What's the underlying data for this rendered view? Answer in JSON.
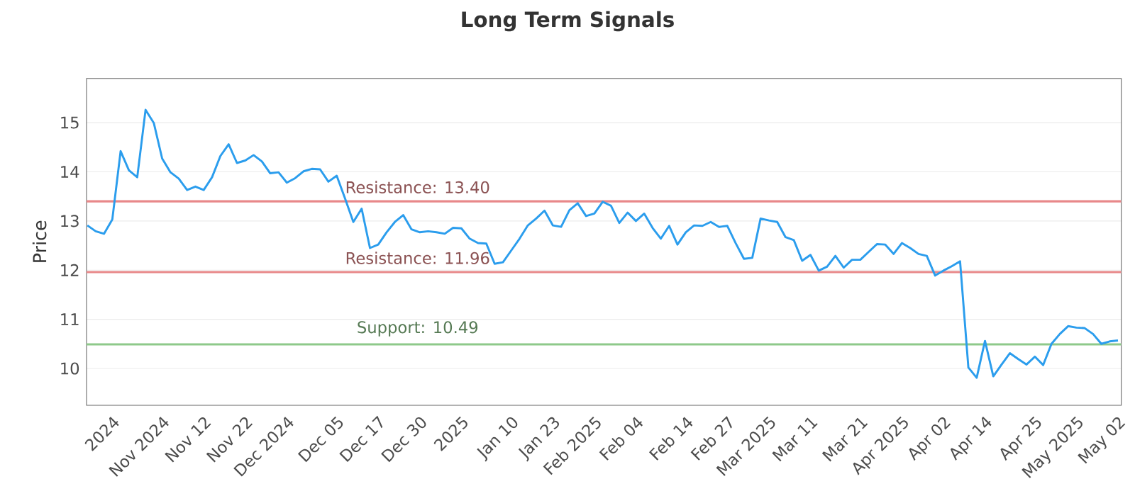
{
  "chart_data": {
    "type": "line",
    "title": "Long Term Signals",
    "ylabel": "Price",
    "categories": [
      null,
      null,
      null,
      "2024",
      null,
      null,
      null,
      null,
      null,
      "Nov 2024",
      null,
      null,
      null,
      null,
      "Nov 12",
      null,
      null,
      null,
      null,
      "Nov 22",
      null,
      null,
      null,
      null,
      "Dec 2024",
      null,
      null,
      null,
      null,
      null,
      "Dec 05",
      null,
      null,
      null,
      null,
      "Dec 17",
      null,
      null,
      null,
      null,
      "Dec 30",
      null,
      null,
      null,
      null,
      "2025",
      null,
      null,
      null,
      null,
      null,
      "Jan 10",
      null,
      null,
      null,
      null,
      "Jan 23",
      null,
      null,
      null,
      null,
      "Feb 2025",
      null,
      null,
      null,
      null,
      "Feb 04",
      null,
      null,
      null,
      null,
      null,
      "Feb 14",
      null,
      null,
      null,
      null,
      "Feb 27",
      null,
      null,
      null,
      null,
      "Mar 2025",
      null,
      null,
      null,
      null,
      "Mar 11",
      null,
      null,
      null,
      null,
      null,
      "Mar 21",
      null,
      null,
      null,
      null,
      "Apr 2025",
      null,
      null,
      null,
      null,
      "Apr 02",
      null,
      null,
      null,
      null,
      "Apr 14",
      null,
      null,
      null,
      null,
      null,
      "Apr 25",
      null,
      null,
      null,
      null,
      "May 2025",
      null,
      null,
      null,
      null,
      "May 02"
    ],
    "series": [
      {
        "color": "#2b9ded",
        "values": [
          12.91,
          12.79,
          12.74,
          13.03,
          14.42,
          14.03,
          13.89,
          15.26,
          14.99,
          14.27,
          13.99,
          13.86,
          13.63,
          13.7,
          13.63,
          13.89,
          14.32,
          14.56,
          14.18,
          14.23,
          14.34,
          14.21,
          13.97,
          13.99,
          13.78,
          13.87,
          14.01,
          14.06,
          14.05,
          13.8,
          13.92,
          13.46,
          12.98,
          13.25,
          12.45,
          12.52,
          12.77,
          12.98,
          13.12,
          12.83,
          12.77,
          12.79,
          12.77,
          12.74,
          12.86,
          12.85,
          12.64,
          12.55,
          12.54,
          12.13,
          12.16,
          12.4,
          12.64,
          12.91,
          13.05,
          13.21,
          12.91,
          12.88,
          13.22,
          13.36,
          13.1,
          13.15,
          13.39,
          13.31,
          12.96,
          13.17,
          13.0,
          13.15,
          12.86,
          12.64,
          12.9,
          12.52,
          12.77,
          12.91,
          12.9,
          12.98,
          12.88,
          12.9,
          12.55,
          12.23,
          12.25,
          13.05,
          13.01,
          12.98,
          12.67,
          12.61,
          12.19,
          12.31,
          11.99,
          12.07,
          12.29,
          12.05,
          12.21,
          12.21,
          12.37,
          12.53,
          12.52,
          12.33,
          12.55,
          12.45,
          12.33,
          12.29,
          11.89,
          11.99,
          12.08,
          12.18,
          10.02,
          9.81,
          10.56,
          9.84,
          10.08,
          10.31,
          10.19,
          10.08,
          10.24,
          10.07,
          10.5,
          10.7,
          10.86,
          10.83,
          10.82,
          10.7,
          10.5,
          10.55,
          10.57
        ]
      }
    ],
    "ylim": [
      9.25,
      15.9
    ],
    "yticks": [
      10,
      11,
      12,
      13,
      14,
      15
    ],
    "grid": "y",
    "marker": "none",
    "line_style": "solid",
    "ref_lines": [
      {
        "axis": "y",
        "value": 13.4,
        "label": "Resistance: 13.40",
        "color": "#e8888a"
      },
      {
        "axis": "y",
        "value": 11.96,
        "label": "Resistance: 11.96",
        "color": "#e8888a"
      },
      {
        "axis": "y",
        "value": 10.49,
        "label": "Support: 10.49",
        "color": "#8ec98a"
      }
    ]
  }
}
